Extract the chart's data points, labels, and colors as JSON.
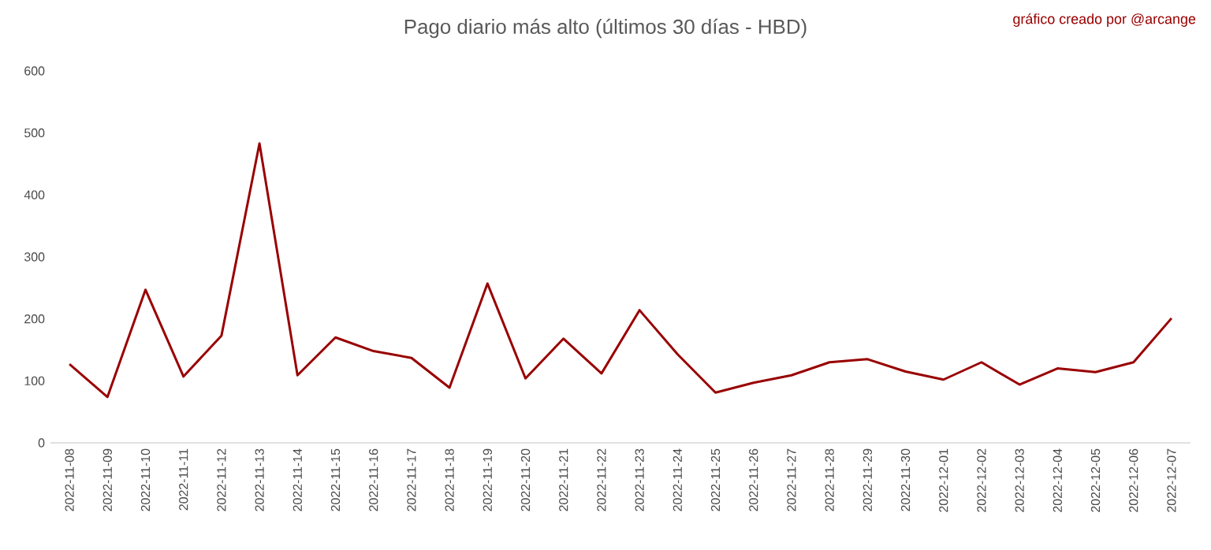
{
  "chart_data": {
    "type": "line",
    "title": "Pago diario más alto (últimos 30 días - HBD)",
    "annotations": [
      "gráfico creado por @arcange"
    ],
    "categories": [
      "2022-11-08",
      "2022-11-09",
      "2022-11-10",
      "2022-11-11",
      "2022-11-12",
      "2022-11-13",
      "2022-11-14",
      "2022-11-15",
      "2022-11-16",
      "2022-11-17",
      "2022-11-18",
      "2022-11-19",
      "2022-11-20",
      "2022-11-21",
      "2022-11-22",
      "2022-11-23",
      "2022-11-24",
      "2022-11-25",
      "2022-11-26",
      "2022-11-27",
      "2022-11-28",
      "2022-11-29",
      "2022-11-30",
      "2022-12-01",
      "2022-12-02",
      "2022-12-03",
      "2022-12-04",
      "2022-12-05",
      "2022-12-06",
      "2022-12-07"
    ],
    "series": [
      {
        "color": "#990000",
        "values": [
          127,
          74,
          247,
          107,
          173,
          483,
          109,
          170,
          148,
          137,
          89,
          257,
          104,
          168,
          112,
          214,
          143,
          81,
          97,
          109,
          130,
          135,
          115,
          102,
          130,
          94,
          120,
          114,
          130,
          201
        ]
      }
    ],
    "ylim": [
      0,
      600
    ],
    "yticks": [
      0,
      100,
      200,
      300,
      400,
      500,
      600
    ],
    "grid": false,
    "marker": "none",
    "line_style": "solid"
  }
}
